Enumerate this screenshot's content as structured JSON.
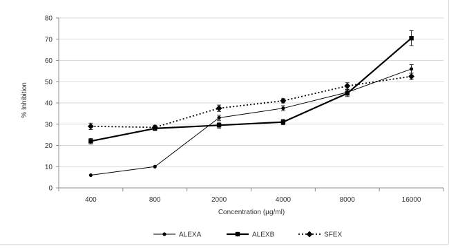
{
  "chart_data": {
    "type": "line",
    "title": "",
    "xlabel": "Concentration (µg/ml)",
    "ylabel": "% Inhibition",
    "categories": [
      "400",
      "800",
      "2000",
      "4000",
      "8000",
      "16000"
    ],
    "ylim": [
      0,
      80
    ],
    "yticks": [
      "0",
      "10",
      "20",
      "30",
      "40",
      "50",
      "60",
      "70",
      "80"
    ],
    "grid": true,
    "legend_position": "bottom",
    "series": [
      {
        "name": "ALEXA",
        "values": [
          6,
          10,
          33,
          37.5,
          45,
          56
        ],
        "errors": [
          0,
          0,
          1.2,
          1.2,
          1.2,
          2
        ],
        "marker": "circle",
        "line_style": "solid-thin",
        "color": "#000000"
      },
      {
        "name": "ALEXB",
        "values": [
          22,
          28,
          29.5,
          31,
          44.5,
          70.5
        ],
        "errors": [
          1.3,
          1,
          1.4,
          1.3,
          1.5,
          3.5
        ],
        "marker": "square",
        "line_style": "solid-thick",
        "color": "#000000"
      },
      {
        "name": "SFEX",
        "values": [
          29,
          28.5,
          37.5,
          41,
          48,
          52.5
        ],
        "errors": [
          1.5,
          1,
          1.5,
          1,
          1.5,
          1.5
        ],
        "marker": "diamond",
        "line_style": "dotted",
        "color": "#000000"
      }
    ]
  }
}
